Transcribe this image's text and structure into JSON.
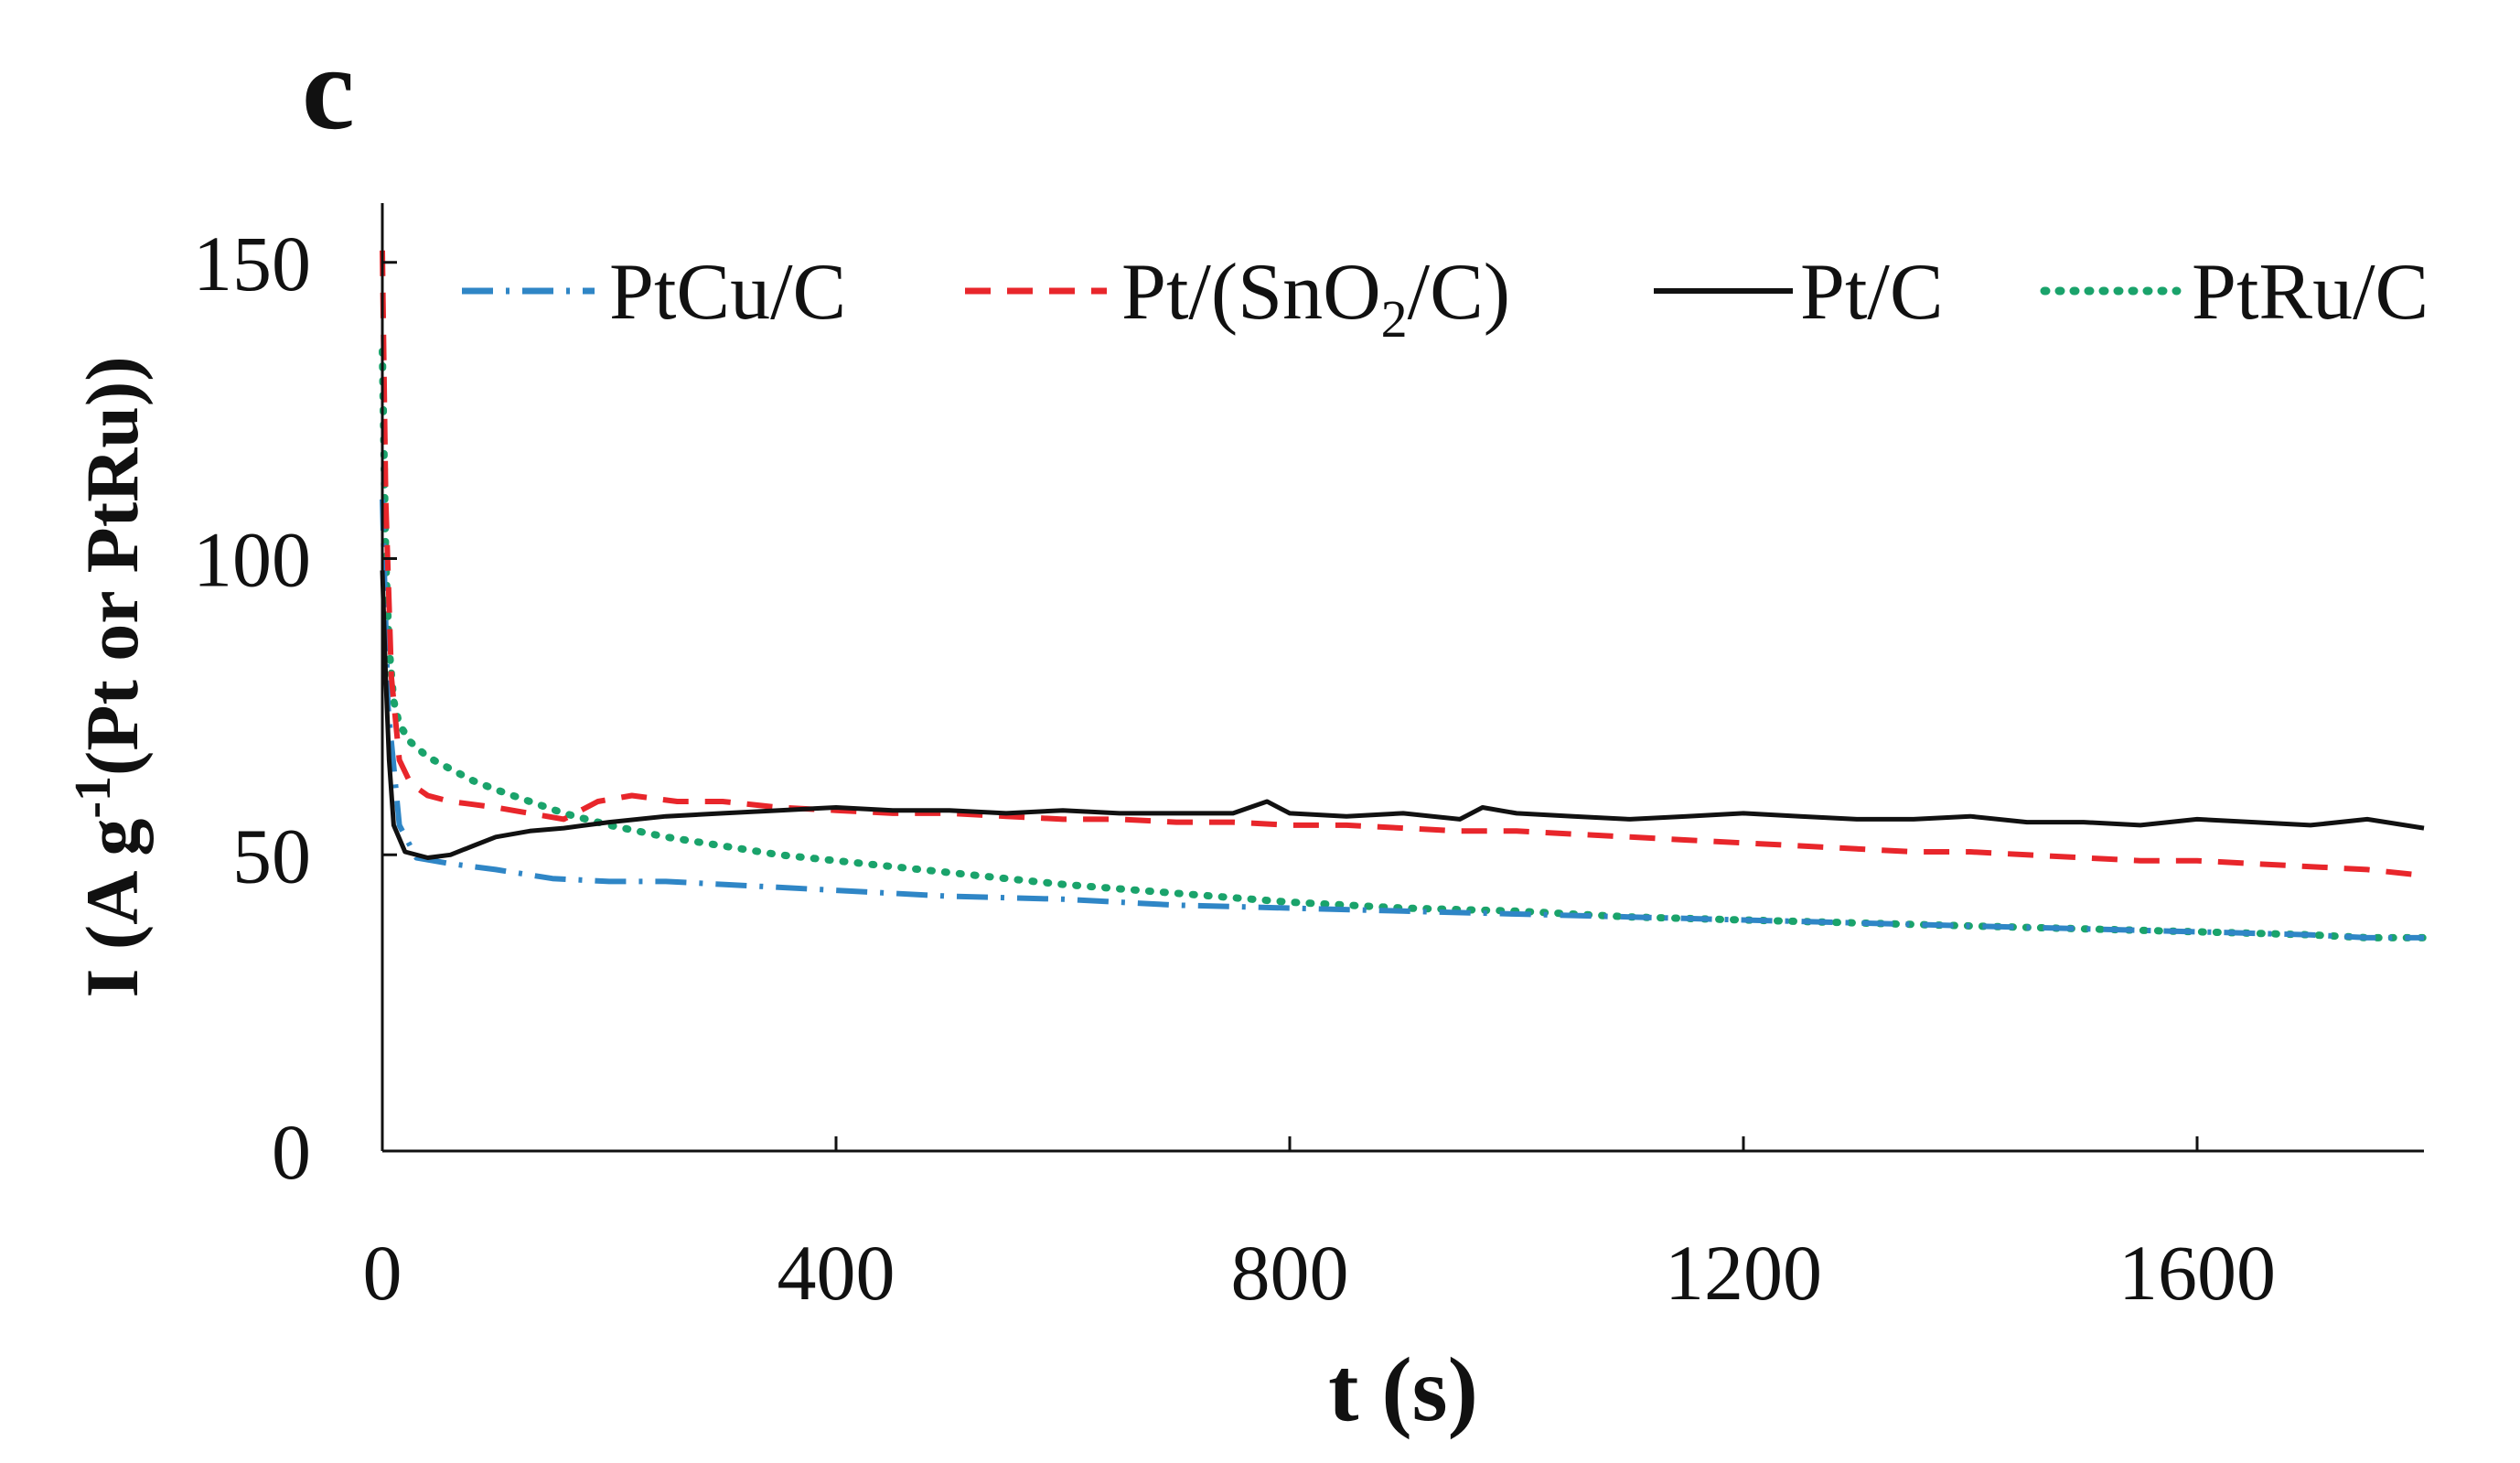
{
  "panel_label": "c",
  "colors": {
    "PtCu/C": "#2f86c6",
    "Pt/(SnO2/C)": "#e8262b",
    "Pt/C": "#111111",
    "PtRu/C": "#1aa36b",
    "axis": "#111111"
  },
  "chart_data": {
    "type": "line",
    "title": "",
    "xlabel": "t (s)",
    "ylabel_parts": {
      "pre": "I (A g",
      "sup": "-1",
      "post": "(Pt or PtRu))"
    },
    "xlim": [
      0,
      1800
    ],
    "ylim": [
      0,
      160
    ],
    "xticks": [
      0,
      400,
      800,
      1200,
      1600
    ],
    "yticks": [
      0,
      50,
      100,
      150
    ],
    "legend_position": "top",
    "series": [
      {
        "name": "PtCu/C",
        "label_main": "PtCu/C",
        "style": "dashdot",
        "x": [
          0,
          5,
          15,
          30,
          60,
          100,
          150,
          200,
          250,
          300,
          400,
          500,
          600,
          700,
          800,
          900,
          1000,
          1100,
          1200,
          1300,
          1400,
          1500,
          1600,
          1700,
          1750,
          1800
        ],
        "y": [
          110,
          75,
          55,
          49.5,
          48.5,
          47.5,
          46,
          45.5,
          45.5,
          45,
          44,
          43,
          42.5,
          41.5,
          41,
          40.5,
          40,
          39.5,
          39,
          38.5,
          38,
          37.5,
          37,
          36.5,
          36,
          36
        ]
      },
      {
        "name": "Pt/(SnO2/C)",
        "label_main": "Pt/(SnO",
        "label_sub": "2",
        "label_end": "/C)",
        "style": "dashed",
        "x": [
          0,
          3,
          8,
          15,
          25,
          40,
          60,
          80,
          100,
          130,
          160,
          190,
          220,
          260,
          300,
          350,
          400,
          450,
          500,
          550,
          600,
          650,
          700,
          750,
          800,
          850,
          900,
          950,
          1000,
          1050,
          1100,
          1150,
          1200,
          1250,
          1300,
          1350,
          1400,
          1450,
          1500,
          1550,
          1600,
          1650,
          1700,
          1750,
          1800
        ],
        "y": [
          152,
          110,
          80,
          66,
          62,
          60,
          59,
          58.5,
          58,
          57,
          56,
          59,
          60,
          59,
          59,
          58,
          57.5,
          57,
          57,
          56.5,
          56,
          56,
          55.5,
          55.5,
          55,
          55,
          54.5,
          54,
          54,
          53.5,
          53,
          52.5,
          52,
          51.5,
          51,
          50.5,
          50.5,
          50,
          49.5,
          49,
          49,
          48.5,
          48,
          47.5,
          46.5
        ]
      },
      {
        "name": "Pt/C",
        "label_main": "Pt/C",
        "style": "solid",
        "x": [
          0,
          3,
          6,
          10,
          20,
          40,
          60,
          80,
          100,
          130,
          160,
          200,
          250,
          300,
          350,
          400,
          450,
          500,
          550,
          600,
          650,
          700,
          750,
          780,
          800,
          850,
          900,
          950,
          970,
          1000,
          1050,
          1100,
          1150,
          1200,
          1250,
          1300,
          1350,
          1400,
          1450,
          1500,
          1550,
          1600,
          1650,
          1700,
          1750,
          1800
        ],
        "y": [
          98,
          80,
          66,
          55,
          50.5,
          49.5,
          50,
          51.5,
          53,
          54,
          54.5,
          55.5,
          56.5,
          57,
          57.5,
          58,
          57.5,
          57.5,
          57,
          57.5,
          57,
          57,
          57,
          59,
          57,
          56.5,
          57,
          56,
          58,
          57,
          56.5,
          56,
          56.5,
          57,
          56.5,
          56,
          56,
          56.5,
          55.5,
          55.5,
          55,
          56,
          55.5,
          55,
          56,
          54.5
        ]
      },
      {
        "name": "PtRu/C",
        "label_main": "PtRu/C",
        "style": "dotted",
        "x": [
          0,
          3,
          6,
          10,
          15,
          25,
          40,
          60,
          80,
          100,
          130,
          160,
          200,
          250,
          300,
          350,
          400,
          450,
          500,
          550,
          600,
          700,
          800,
          900,
          1000,
          1100,
          1200,
          1300,
          1400,
          1500,
          1600,
          1700,
          1750,
          1800
        ],
        "y": [
          135,
          100,
          85,
          76,
          72,
          69,
          66.5,
          64.5,
          62.5,
          61,
          59,
          57,
          55,
          53,
          51.5,
          50,
          49,
          48,
          47,
          46,
          45,
          43.5,
          42,
          41,
          40.5,
          39.5,
          39,
          38.5,
          38,
          37.5,
          37,
          36.5,
          36,
          36
        ]
      }
    ]
  }
}
